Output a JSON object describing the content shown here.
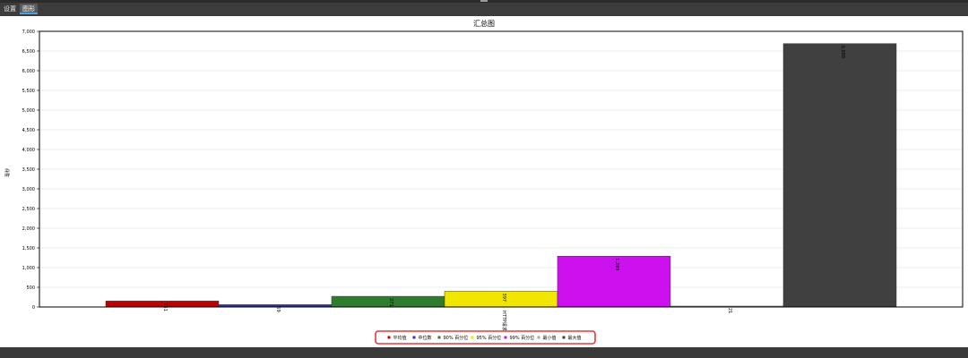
{
  "tabs": [
    {
      "label": "设置"
    },
    {
      "label": "图形"
    }
  ],
  "chart_data": {
    "type": "bar",
    "title": "汇总图",
    "ylabel": "毫秒",
    "category_label": "HTTP请求",
    "ylim": [
      0,
      7000
    ],
    "ytick_step": 500,
    "grid": true,
    "legend_position": "bottom-center",
    "series": [
      {
        "name": "平均值",
        "value": 151,
        "label": "151",
        "color": "#c00000"
      },
      {
        "name": "中位数",
        "value": 59,
        "label": "59",
        "color": "#2f2fb0"
      },
      {
        "name": "90% 百分位",
        "value": 271,
        "label": "271",
        "color": "#2e7d2e"
      },
      {
        "name": "95% 百分位",
        "value": 397,
        "label": "397",
        "color": "#f2e600"
      },
      {
        "name": "99% 百分位",
        "value": 1289,
        "label": "1,289",
        "color": "#cc11ee"
      },
      {
        "name": "最小值",
        "value": 21,
        "label": "21",
        "color": "#a9a9a9"
      },
      {
        "name": "最大值",
        "value": 6688,
        "label": "6,688",
        "color": "#404040"
      }
    ],
    "colors": {
      "legend_highlight": "#e53935",
      "grid": "#d9d9d9",
      "axis": "#000000"
    }
  }
}
